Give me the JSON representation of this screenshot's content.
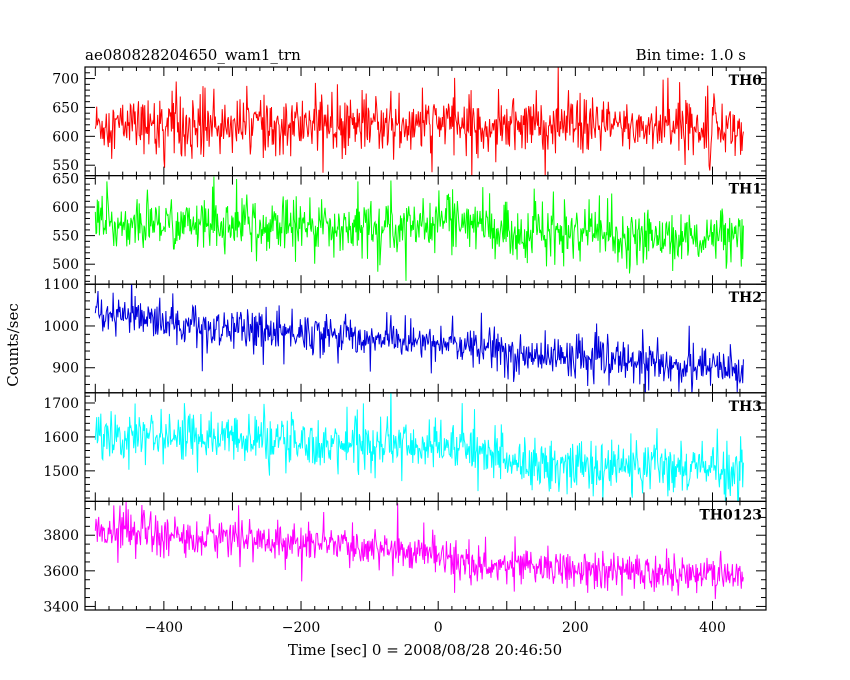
{
  "header": {
    "left_title": "ae080828204650_wam1_trn",
    "right_title": "Bin time: 1.0 s"
  },
  "chart_data": {
    "type": "line",
    "title": "ae080828204650_wam1_trn",
    "subtitle": "Bin time: 1.0 s",
    "xlabel": "Time [sec] 0 = 2008/08/28 20:46:50",
    "ylabel": "Counts/sec",
    "xlim": [
      -515,
      478
    ],
    "x_range": [
      -500,
      445
    ],
    "bin_time_s": 1.0,
    "x_ticks": [
      -400,
      -200,
      0,
      200,
      400
    ],
    "x_tick_labels": [
      "−400",
      "−200",
      "0",
      "200",
      "400"
    ],
    "grid": false,
    "legend": "none",
    "panels": [
      {
        "name": "TH0",
        "color": "#ff0000",
        "ylim": [
          532,
          720
        ],
        "y_ticks": [
          550,
          600,
          650,
          700
        ],
        "mean": [
          [
            -500,
            620
          ],
          [
            0,
            620
          ],
          [
            445,
            615
          ]
        ],
        "noise": 30,
        "spikes": 45
      },
      {
        "name": "TH1",
        "color": "#00ff00",
        "ylim": [
          465,
          655
        ],
        "y_ticks": [
          500,
          550,
          600,
          650
        ],
        "mean": [
          [
            -500,
            570
          ],
          [
            -10,
            565
          ],
          [
            0,
            590
          ],
          [
            90,
            555
          ],
          [
            445,
            545
          ]
        ],
        "noise": 28,
        "spikes": 40
      },
      {
        "name": "TH2",
        "color": "#0000dd",
        "ylim": [
          840,
          1100
        ],
        "y_ticks": [
          900,
          1000,
          1100
        ],
        "mean": [
          [
            -500,
            1020
          ],
          [
            -300,
            995
          ],
          [
            0,
            960
          ],
          [
            100,
            935
          ],
          [
            445,
            895
          ]
        ],
        "noise": 30,
        "spikes": 45
      },
      {
        "name": "TH3",
        "color": "#00ffff",
        "ylim": [
          1410,
          1730
        ],
        "y_ticks": [
          1500,
          1600,
          1700
        ],
        "mean": [
          [
            -500,
            1610
          ],
          [
            0,
            1570
          ],
          [
            90,
            1550
          ],
          [
            100,
            1520
          ],
          [
            445,
            1510
          ]
        ],
        "noise": 45,
        "spikes": 65
      },
      {
        "name": "TH0123",
        "color": "#ff00ff",
        "ylim": [
          3380,
          3990
        ],
        "y_ticks": [
          3400,
          3600,
          3800
        ],
        "mean": [
          [
            -500,
            3830
          ],
          [
            -200,
            3760
          ],
          [
            -10,
            3700
          ],
          [
            0,
            3720
          ],
          [
            20,
            3640
          ],
          [
            445,
            3570
          ]
        ],
        "noise": 65,
        "spikes": 95
      }
    ]
  }
}
